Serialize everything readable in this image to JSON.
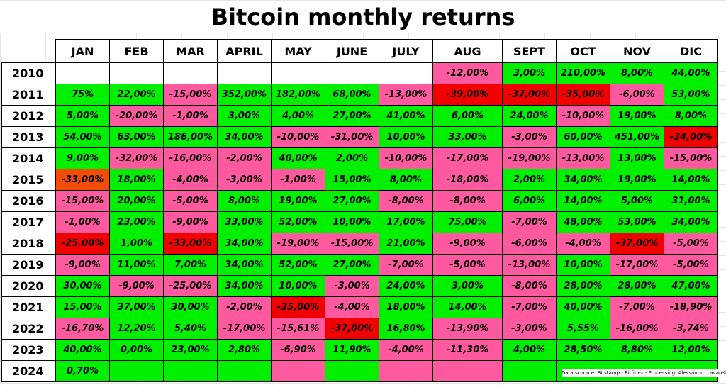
{
  "title": "Bitcoin monthly returns",
  "source_note": "Data scource: Bitstamp - Bitfinex - Processing: Alessandro Lavarello",
  "colors": {
    "positive": "#00f000",
    "negative": "#ff5aa0",
    "worst": "#f20000",
    "worst_alt": "#f24c06",
    "empty": "#ffffff"
  },
  "chart_data": {
    "type": "table",
    "title": "Bitcoin monthly returns",
    "columns": [
      "JAN",
      "FEB",
      "MAR",
      "APRIL",
      "MAY",
      "JUNE",
      "JULY",
      "AUG",
      "SEPT",
      "OCT",
      "NOV",
      "DIC"
    ],
    "rows": [
      {
        "year": "2010",
        "values": [
          "",
          "",
          "",
          "",
          "",
          "",
          "",
          "-12,00%",
          "3,00%",
          "210,00%",
          "8,00%",
          "44,00%"
        ],
        "colors": [
          "w",
          "w",
          "w",
          "w",
          "w",
          "w",
          "w",
          "p",
          "g",
          "g",
          "g",
          "g"
        ]
      },
      {
        "year": "2011",
        "values": [
          "75%",
          "22,00%",
          "-15,00%",
          "352,00%",
          "182,00%",
          "68,00%",
          "-13,00%",
          "-39,00%",
          "-37,00%",
          "-35,00%",
          "-6,00%",
          "53,00%"
        ],
        "colors": [
          "g",
          "g",
          "p",
          "g",
          "g",
          "g",
          "p",
          "r",
          "r",
          "r",
          "p",
          "g"
        ]
      },
      {
        "year": "2012",
        "values": [
          "5,00%",
          "-20,00%",
          "-1,00%",
          "3,00%",
          "4,00%",
          "27,00%",
          "41,00%",
          "6,00%",
          "24,00%",
          "-10,00%",
          "19,00%",
          "8,00%"
        ],
        "colors": [
          "g",
          "p",
          "p",
          "g",
          "g",
          "g",
          "g",
          "g",
          "g",
          "p",
          "g",
          "g"
        ]
      },
      {
        "year": "2013",
        "values": [
          "54,00%",
          "63,00%",
          "186,00%",
          "34,00%",
          "-10,00%",
          "-31,00%",
          "10,00%",
          "33,00%",
          "-3,00%",
          "60,00%",
          "451,00%",
          "-34,00%"
        ],
        "colors": [
          "g",
          "g",
          "g",
          "g",
          "p",
          "p",
          "g",
          "g",
          "p",
          "g",
          "g",
          "r"
        ]
      },
      {
        "year": "2014",
        "values": [
          "9,00%",
          "-32,00%",
          "-16,00%",
          "-2,00%",
          "40,00%",
          "2,00%",
          "-10,00%",
          "-17,00%",
          "-19,00%",
          "-13,00%",
          "13,00%",
          "-15,00%"
        ],
        "colors": [
          "g",
          "p",
          "p",
          "p",
          "g",
          "g",
          "p",
          "p",
          "p",
          "p",
          "g",
          "p"
        ]
      },
      {
        "year": "2015",
        "values": [
          "-33,00%",
          "18,00%",
          "-4,00%",
          "-3,00%",
          "-1,00%",
          "15,00%",
          "8,00%",
          "-18,00%",
          "2,00%",
          "34,00%",
          "19,00%",
          "14,00%"
        ],
        "colors": [
          "o",
          "g",
          "p",
          "p",
          "p",
          "g",
          "g",
          "p",
          "g",
          "g",
          "g",
          "g"
        ]
      },
      {
        "year": "2016",
        "values": [
          "-15,00%",
          "20,00%",
          "-5,00%",
          "8,00%",
          "19,00%",
          "27,00%",
          "-8,00%",
          "-8,00%",
          "6,00%",
          "14,00%",
          "5,00%",
          "31,00%"
        ],
        "colors": [
          "p",
          "g",
          "p",
          "g",
          "g",
          "g",
          "p",
          "p",
          "g",
          "g",
          "g",
          "g"
        ]
      },
      {
        "year": "2017",
        "values": [
          "-1,00%",
          "23,00%",
          "-9,00%",
          "33,00%",
          "52,00%",
          "10,00%",
          "17,00%",
          "75,00%",
          "-7,00%",
          "48,00%",
          "53,00%",
          "34,00%"
        ],
        "colors": [
          "p",
          "g",
          "p",
          "g",
          "g",
          "g",
          "g",
          "g",
          "p",
          "g",
          "g",
          "g"
        ]
      },
      {
        "year": "2018",
        "values": [
          "-25,00%",
          "1,00%",
          "-33,00%",
          "34,00%",
          "-19,00%",
          "-15,00%",
          "21,00%",
          "-9,00%",
          "-6,00%",
          "-4,00%",
          "-37,00%",
          "-5,00%"
        ],
        "colors": [
          "r",
          "g",
          "r",
          "g",
          "p",
          "p",
          "g",
          "p",
          "p",
          "p",
          "r",
          "p"
        ]
      },
      {
        "year": "2019",
        "values": [
          "-9,00%",
          "11,00%",
          "7,00%",
          "34,00%",
          "52,00%",
          "27,00%",
          "-7,00%",
          "-5,00%",
          "-13,00%",
          "10,00%",
          "-17,00%",
          "-5,00%"
        ],
        "colors": [
          "p",
          "g",
          "g",
          "g",
          "g",
          "g",
          "p",
          "p",
          "p",
          "g",
          "p",
          "p"
        ]
      },
      {
        "year": "2020",
        "values": [
          "30,00%",
          "-9,00%",
          "-25,00%",
          "34,00%",
          "10,00%",
          "-3,00%",
          "24,00%",
          "3,00%",
          "-8,00%",
          "28,00%",
          "28,00%",
          "47,00%"
        ],
        "colors": [
          "g",
          "p",
          "p",
          "g",
          "g",
          "p",
          "g",
          "g",
          "p",
          "g",
          "g",
          "g"
        ]
      },
      {
        "year": "2021",
        "values": [
          "15,00%",
          "37,00%",
          "30,00%",
          "-2,00%",
          "-35,00%",
          "-4,00%",
          "18,00%",
          "14,00%",
          "-7,00%",
          "40,00%",
          "-7,00%",
          "-18,90%"
        ],
        "colors": [
          "g",
          "g",
          "g",
          "p",
          "r",
          "p",
          "g",
          "g",
          "p",
          "g",
          "p",
          "p"
        ]
      },
      {
        "year": "2022",
        "values": [
          "-16,70%",
          "12,20%",
          "5,40%",
          "-17,00%",
          "-15,61%",
          "-37,00%",
          "16,80%",
          "-13,90%",
          "-3,00%",
          "5,55%",
          "-16,00%",
          "-3,74%"
        ],
        "colors": [
          "p",
          "g",
          "g",
          "p",
          "p",
          "r",
          "g",
          "p",
          "p",
          "g",
          "p",
          "p"
        ]
      },
      {
        "year": "2023",
        "values": [
          "40,00%",
          "0,00%",
          "23,00%",
          "2,80%",
          "-6,90%",
          "11,90%",
          "-4,00%",
          "-11,30%",
          "4,00%",
          "28,50%",
          "8,80%",
          "12,00%"
        ],
        "colors": [
          "g",
          "g",
          "g",
          "g",
          "p",
          "g",
          "p",
          "p",
          "g",
          "g",
          "g",
          "g"
        ]
      },
      {
        "year": "2024",
        "values": [
          "0,70%",
          "",
          "",
          "",
          "",
          "",
          "",
          "",
          "",
          "",
          "",
          ""
        ],
        "colors": [
          "g",
          "g",
          "g",
          "g",
          "p",
          "g",
          "p",
          "p",
          "g",
          "g",
          "g",
          "g"
        ]
      }
    ]
  }
}
